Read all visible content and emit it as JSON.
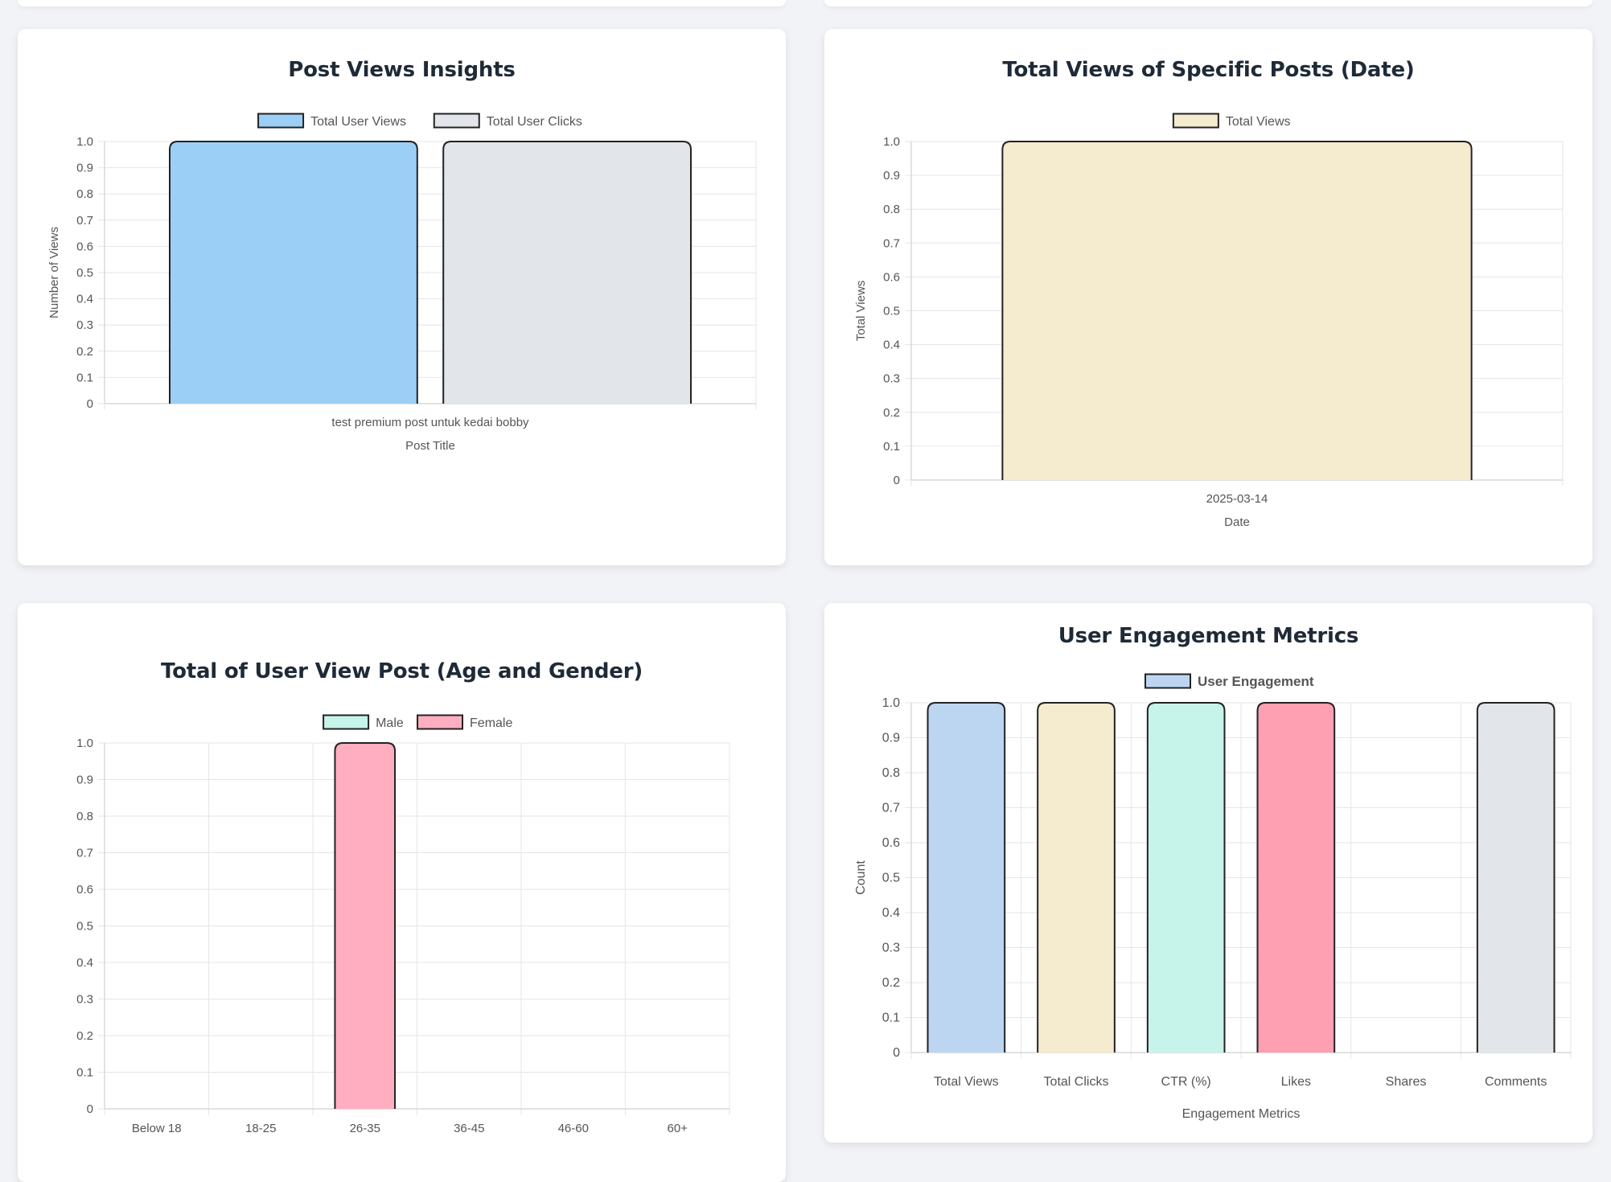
{
  "colors": {
    "blue": "#9ccff5",
    "light_blue": "#bcd6f2",
    "gray": "#e2e5e9",
    "cream": "#f5ebcf",
    "mint": "#c6f3ea",
    "pink": "#ffadc0",
    "rose": "#ff9fb2",
    "grid": "#e6e6e6",
    "text": "#555555"
  },
  "chart_data": [
    {
      "id": "post-views",
      "type": "bar",
      "title": "Post Views Insights",
      "categories": [
        "test premium post untuk kedai bobby"
      ],
      "series": [
        {
          "name": "Total User Views",
          "values": [
            1
          ],
          "color": "#9ccff5"
        },
        {
          "name": "Total User Clicks",
          "values": [
            1
          ],
          "color": "#e2e5e9"
        }
      ],
      "xlabel": "Post Title",
      "ylabel": "Number of Views",
      "ylim": [
        0,
        1
      ],
      "yticks": [
        "0",
        "0.1",
        "0.2",
        "0.3",
        "0.4",
        "0.5",
        "0.6",
        "0.7",
        "0.8",
        "0.9",
        "1.0"
      ],
      "grid": true,
      "legend": "top"
    },
    {
      "id": "views-by-date",
      "type": "bar",
      "title": "Total Views of Specific Posts (Date)",
      "categories": [
        "2025-03-14"
      ],
      "series": [
        {
          "name": "Total Views",
          "values": [
            1
          ],
          "color": "#f5ebcf"
        }
      ],
      "xlabel": "Date",
      "ylabel": "Total Views",
      "ylim": [
        0,
        1
      ],
      "yticks": [
        "0",
        "0.1",
        "0.2",
        "0.3",
        "0.4",
        "0.5",
        "0.6",
        "0.7",
        "0.8",
        "0.9",
        "1.0"
      ],
      "grid": true,
      "legend": "top"
    },
    {
      "id": "age-gender",
      "type": "bar",
      "title": "Total of User View Post (Age and Gender)",
      "categories": [
        "Below 18",
        "18-25",
        "26-35",
        "36-45",
        "46-60",
        "60+"
      ],
      "series": [
        {
          "name": "Male",
          "values": [
            0,
            0,
            0,
            0,
            0,
            0
          ],
          "color": "#c6f3ea"
        },
        {
          "name": "Female",
          "values": [
            0,
            0,
            1,
            0,
            0,
            0
          ],
          "color": "#ffadc0"
        }
      ],
      "xlabel": "",
      "ylabel": "",
      "ylim": [
        0,
        1
      ],
      "yticks": [
        "0",
        "0.1",
        "0.2",
        "0.3",
        "0.4",
        "0.5",
        "0.6",
        "0.7",
        "0.8",
        "0.9",
        "1.0"
      ],
      "grid": true,
      "legend": "top"
    },
    {
      "id": "engagement",
      "type": "bar",
      "title": "User Engagement Metrics",
      "categories": [
        "Total Views",
        "Total Clicks",
        "CTR (%)",
        "Likes",
        "Shares",
        "Comments"
      ],
      "series": [
        {
          "name": "User Engagement",
          "values": [
            1,
            1,
            1,
            1,
            0,
            1
          ],
          "colors": [
            "#bcd6f2",
            "#f5ebcf",
            "#c6f3ea",
            "#ff9fb2",
            "#e2e5e9",
            "#e2e5e9"
          ]
        }
      ],
      "xlabel": "Engagement Metrics",
      "ylabel": "Count",
      "ylim": [
        0,
        1
      ],
      "yticks": [
        "0",
        "0.1",
        "0.2",
        "0.3",
        "0.4",
        "0.5",
        "0.6",
        "0.7",
        "0.8",
        "0.9",
        "1.0"
      ],
      "grid": true,
      "legend": "top"
    }
  ]
}
